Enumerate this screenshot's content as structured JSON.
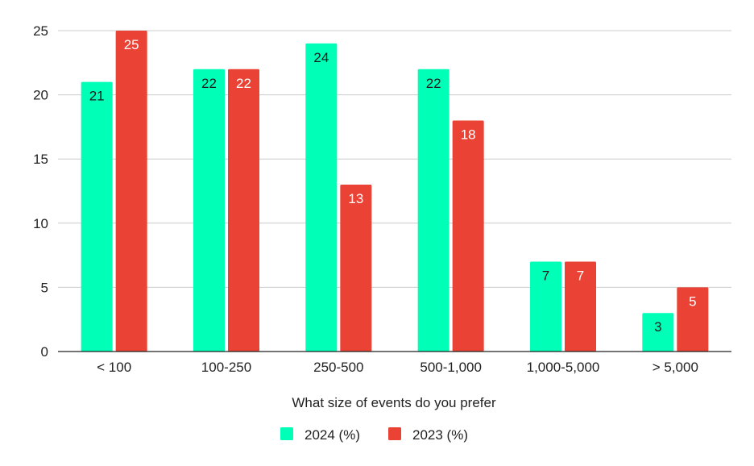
{
  "chart_data": {
    "type": "bar",
    "xlabel": "What size of events do you prefer",
    "ylabel": "",
    "categories": [
      "< 100",
      "100-250",
      "250-500",
      "500-1,000",
      "1,000-5,000",
      "> 5,000"
    ],
    "series": [
      {
        "name": "2024 (%)",
        "color": "#00ffb7",
        "label_color": "#1a1a1a",
        "values": [
          21,
          22,
          24,
          22,
          7,
          3
        ]
      },
      {
        "name": "2023 (%)",
        "color": "#ea4335",
        "label_color": "#ffffff",
        "values": [
          25,
          22,
          13,
          18,
          7,
          5
        ]
      }
    ],
    "ylim": [
      0,
      25
    ],
    "yticks": [
      0,
      5,
      10,
      15,
      20,
      25
    ],
    "grid": true,
    "legend_position": "bottom"
  }
}
